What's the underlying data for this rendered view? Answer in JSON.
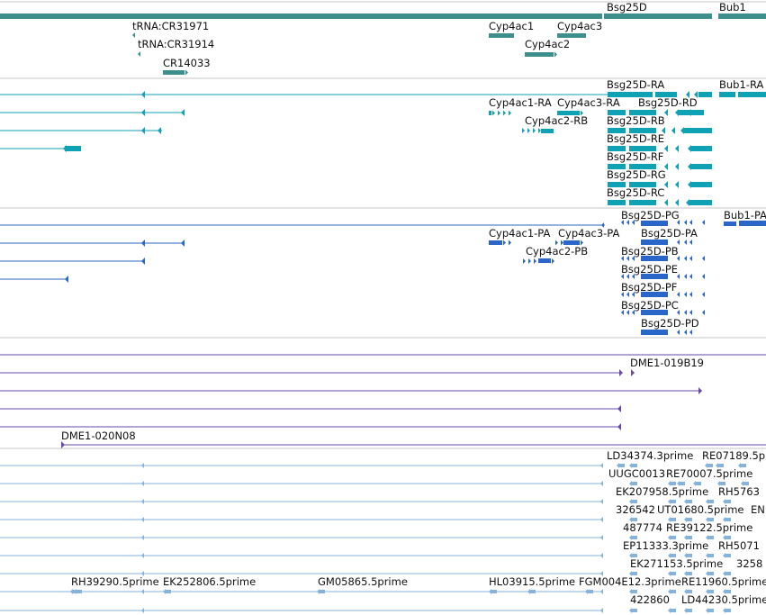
{
  "colors": {
    "gene": "#3d8f8c",
    "mrna": "#0fa2b4",
    "protein": "#2a66c8",
    "clone": "#6a4aa4",
    "est": "#86b3dc",
    "separator": "#c4c4c4"
  },
  "tracks": {
    "genes": {
      "labels": [
        "Bsg25D",
        "Bub1",
        "tRNA:CR31971",
        "tRNA:CR31914",
        "CR14033",
        "Cyp4ac1",
        "Cyp4ac3",
        "Cyp4ac2"
      ]
    },
    "transcripts": {
      "labels": [
        "Bsg25D-RA",
        "Bub1-RA",
        "Cyp4ac1-RA",
        "Cyp4ac3-RA",
        "Bsg25D-RD",
        "Cyp4ac2-RB",
        "Bsg25D-RB",
        "Bsg25D-RE",
        "Bsg25D-RF",
        "Bsg25D-RG",
        "Bsg25D-RC"
      ]
    },
    "proteins": {
      "labels": [
        "Bsg25D-PG",
        "Bub1-PA",
        "Cyp4ac1-PA",
        "Cyp4ac3-PA",
        "Bsg25D-PA",
        "Cyp4ac2-PB",
        "Bsg25D-PB",
        "Bsg25D-PE",
        "Bsg25D-PF",
        "Bsg25D-PC",
        "Bsg25D-PD"
      ]
    },
    "clones": {
      "labels": [
        "DME1-019B19",
        "DME1-020N08"
      ]
    },
    "ests": {
      "labels": [
        "LD34374.3prime",
        "RE07189.5p",
        "UUGC0013",
        "RE70007.5prime",
        "EK207958.5prime",
        "RH5763",
        "326542",
        "UT01680.5prime",
        "EN",
        "487774",
        "RE39122.5prime",
        "EP11333.3prime",
        "RH5071",
        "EK271153.5prime",
        "3258",
        "RH39290.5prime",
        "EK252806.5prime",
        "GM05865.5prime",
        "HL03915.5prime",
        "FGM004E12.3prime",
        "422860",
        "LD44230.5prime",
        "RE11960.5prime"
      ]
    }
  }
}
